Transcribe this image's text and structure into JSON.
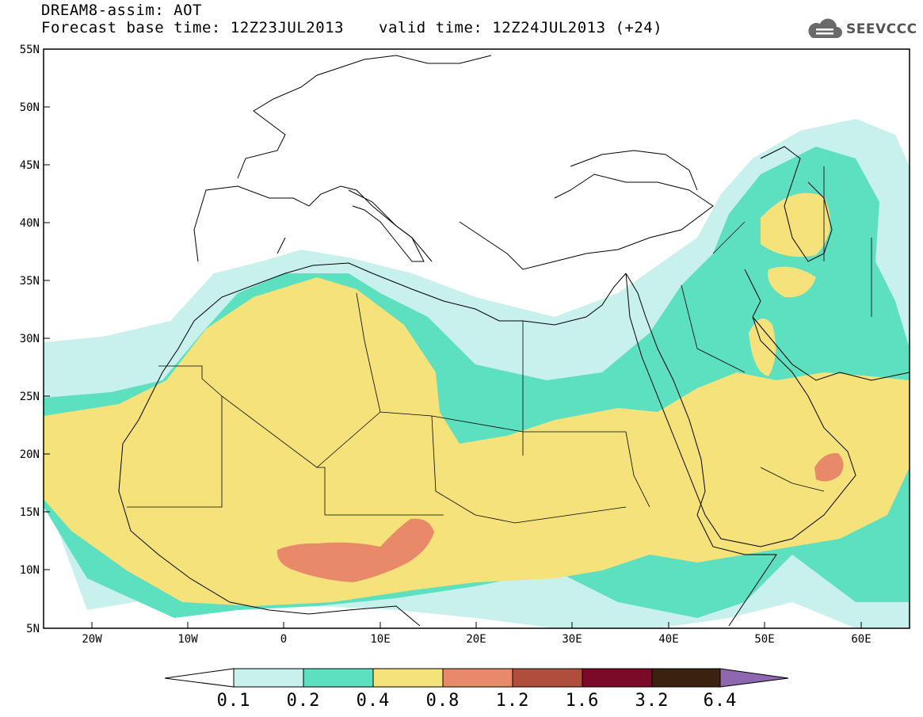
{
  "header": {
    "title": "DREAM8-assim: AOT",
    "base_time": "Forecast base time: 12Z23JUL2013",
    "valid_time": "valid time: 12Z24JUL2013 (+24)"
  },
  "logo": {
    "text": "SEEVCCC",
    "icon": "cloud-icon"
  },
  "map": {
    "projection": "lat-lon",
    "lon_range": [
      -25,
      65
    ],
    "lat_range": [
      5,
      55
    ],
    "lat_ticks": [
      "55N",
      "50N",
      "45N",
      "40N",
      "35N",
      "30N",
      "25N",
      "20N",
      "15N",
      "10N",
      "5N"
    ],
    "lon_ticks": [
      "20W",
      "10W",
      "0",
      "10E",
      "20E",
      "30E",
      "40E",
      "50E",
      "60E"
    ],
    "field": "Aerosol optical thickness (dust)"
  },
  "colorbar": {
    "labels": [
      "0.1",
      "0.2",
      "0.4",
      "0.8",
      "1.2",
      "1.6",
      "3.2",
      "6.4"
    ],
    "colors": [
      "#ffffff",
      "#c8f0ec",
      "#5de0c0",
      "#f5e27a",
      "#e8896a",
      "#b04e3e",
      "#7a0a26",
      "#3b2110",
      "#8f67b0"
    ]
  }
}
